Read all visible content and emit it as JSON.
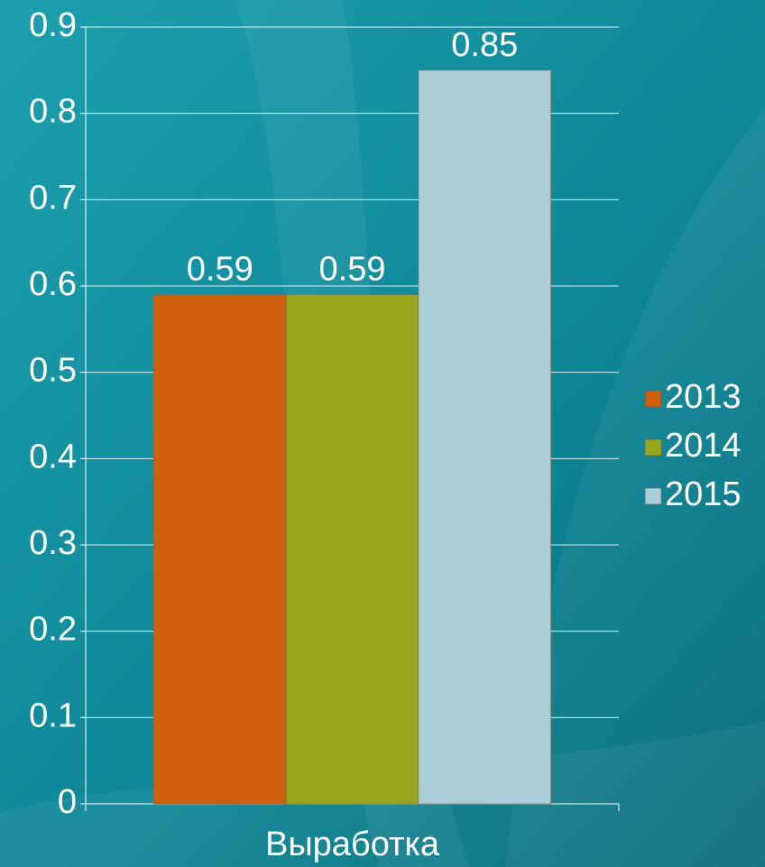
{
  "chart_data": {
    "type": "bar",
    "categories": [
      "Выработка"
    ],
    "series": [
      {
        "name": "2013",
        "color": "#cd5f0d",
        "values": [
          0.59
        ]
      },
      {
        "name": "2014",
        "color": "#97a81c",
        "values": [
          0.59
        ]
      },
      {
        "name": "2015",
        "color": "#abcdd8",
        "values": [
          0.85
        ]
      }
    ],
    "ylim": [
      0,
      0.9
    ],
    "yticks": [
      0,
      0.1,
      0.2,
      0.3,
      0.4,
      0.5,
      0.6,
      0.7,
      0.8,
      0.9
    ],
    "grid": true,
    "legend": "right"
  }
}
